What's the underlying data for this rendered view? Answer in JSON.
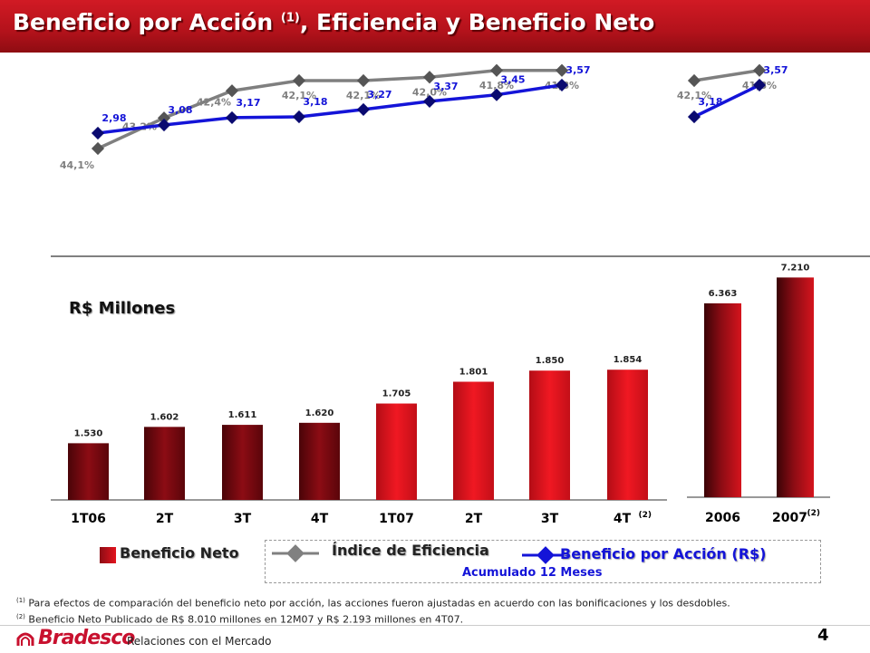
{
  "title": {
    "main": "Beneficio por Acción ",
    "sup": "(1)",
    "rest": ", Eficiencia y Beneficio Neto"
  },
  "colors": {
    "title_bg": "#b3121b",
    "eps_line": "#1414d8",
    "efficiency_line": "#7f7f7f",
    "bar_dark": "#7a0a10",
    "bar_bright": "#e3141e"
  },
  "chart_data": [
    {
      "type": "line",
      "categories": [
        "1T06",
        "2T",
        "3T",
        "4T",
        "1T07",
        "2T",
        "3T",
        "4T"
      ],
      "series": [
        {
          "name": "Beneficio por Acción (R$)",
          "values": [
            2.98,
            3.08,
            3.17,
            3.18,
            3.27,
            3.37,
            3.45,
            3.57
          ],
          "labels": [
            "2,98",
            "3,08",
            "3,17",
            "3,18",
            "3,27",
            "3,37",
            "3,45",
            "3,57"
          ]
        },
        {
          "name": "Índice de Eficiencia",
          "values": [
            44.1,
            43.2,
            42.4,
            42.1,
            42.1,
            42.0,
            41.8,
            41.8
          ],
          "labels": [
            "44,1%",
            "43,2%",
            "42,4%",
            "42,1%",
            "42,1%",
            "42,0%",
            "41,8%",
            "41,8%"
          ]
        }
      ]
    },
    {
      "type": "line",
      "categories": [
        "2006",
        "2007"
      ],
      "series": [
        {
          "name": "Beneficio por Acción (R$)",
          "values": [
            3.18,
            3.57
          ],
          "labels": [
            "3,18",
            "3,57"
          ]
        },
        {
          "name": "Índice de Eficiencia",
          "values": [
            42.1,
            41.8
          ],
          "labels": [
            "42,1%",
            "41,8%"
          ]
        }
      ]
    },
    {
      "type": "bar",
      "ylabel": "R$ Millones",
      "categories": [
        "1T06",
        "2T",
        "3T",
        "4T",
        "1T07",
        "2T",
        "3T",
        "4T"
      ],
      "category_sups": [
        "",
        "",
        "",
        "",
        "",
        "",
        "",
        "(2)"
      ],
      "values": [
        1530,
        1602,
        1611,
        1620,
        1705,
        1801,
        1850,
        1854
      ],
      "labels": [
        "1.530",
        "1.602",
        "1.611",
        "1.620",
        "1.705",
        "1.801",
        "1.850",
        "1.854"
      ]
    },
    {
      "type": "bar",
      "categories": [
        "2006",
        "2007"
      ],
      "category_sups": [
        "",
        "(2)"
      ],
      "values": [
        6363,
        7210
      ],
      "labels": [
        "6.363",
        "7.210"
      ]
    }
  ],
  "legend": {
    "net": "Beneficio Neto",
    "efficiency": "Índice de Eficiencia",
    "eps": "Beneficio por Acción (R$)",
    "accum": "Acumulado 12 Meses"
  },
  "footnotes": {
    "f1_mark": "(1)",
    "f1": " Para efectos de comparación del beneficio neto por acción, las acciones fueron ajustadas en acuerdo con las bonificaciones y los desdobles.",
    "f2_mark": "(2)",
    "f2": " Beneficio Neto Publicado de R$ 8.010 millones en 12M07 y R$ 2.193 millones en 4T07."
  },
  "footer": {
    "brand": "Bradesco",
    "section": "Relaciones con el Mercado",
    "page": "4"
  }
}
